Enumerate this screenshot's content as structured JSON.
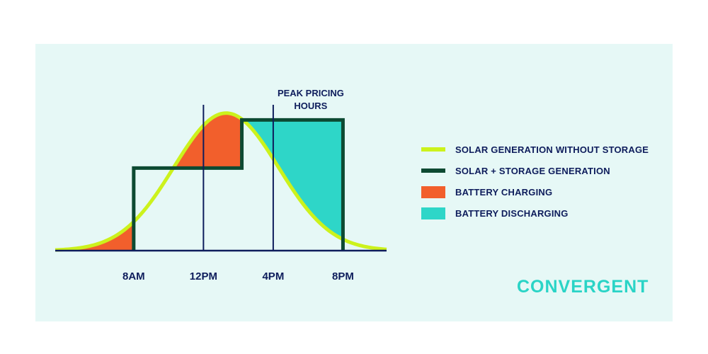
{
  "chart_data": {
    "type": "area",
    "title": "",
    "xlabel": "",
    "ylabel": "",
    "x_ticks": [
      {
        "hour": 8,
        "label": "8AM"
      },
      {
        "hour": 12,
        "label": "12PM"
      },
      {
        "hour": 16,
        "label": "4PM"
      },
      {
        "hour": 20,
        "label": "8PM"
      }
    ],
    "xlim": [
      3.5,
      22.5
    ],
    "ylim": [
      0,
      1.05
    ],
    "annotation": {
      "label_line1": "PEAK PRICING",
      "label_line2": "HOURS",
      "from_hour": 12,
      "to_hour": 16
    },
    "series": [
      {
        "name": "SOLAR GENERATION WITHOUT STORAGE",
        "kind": "line",
        "curve": "gaussian",
        "peak_hour": 13.3,
        "peak_value": 1.0,
        "sigma_hours": 3.0,
        "color": "#ccf21c"
      },
      {
        "name": "SOLAR + STORAGE GENERATION",
        "kind": "step",
        "steps": [
          {
            "from_hour": 8,
            "to_hour": 14.2,
            "value": 0.6
          },
          {
            "from_hour": 14.2,
            "to_hour": 20,
            "value": 0.95
          }
        ],
        "color": "#0d4a32"
      },
      {
        "name": "BATTERY CHARGING",
        "kind": "area",
        "description": "area between solar curve and storage output, before 14.2h",
        "color": "#f25f2c"
      },
      {
        "name": "BATTERY DISCHARGING",
        "kind": "area",
        "description": "area between storage output and solar curve, after 14.2h",
        "color": "#2ed6c8"
      }
    ]
  },
  "legend": {
    "items": [
      {
        "label": "SOLAR GENERATION WITHOUT STORAGE",
        "color": "#ccf21c",
        "shape": "line"
      },
      {
        "label": "SOLAR + STORAGE GENERATION",
        "color": "#0d4a32",
        "shape": "line"
      },
      {
        "label": "BATTERY CHARGING",
        "color": "#f25f2c",
        "shape": "box"
      },
      {
        "label": "BATTERY DISCHARGING",
        "color": "#2ed6c8",
        "shape": "box"
      }
    ]
  },
  "brand": {
    "name": "CONVERGENT",
    "color": "#2ad4c6"
  },
  "colors": {
    "axis": "#0e1d5c",
    "background": "#e6f8f6",
    "text": "#0e1d5c"
  }
}
